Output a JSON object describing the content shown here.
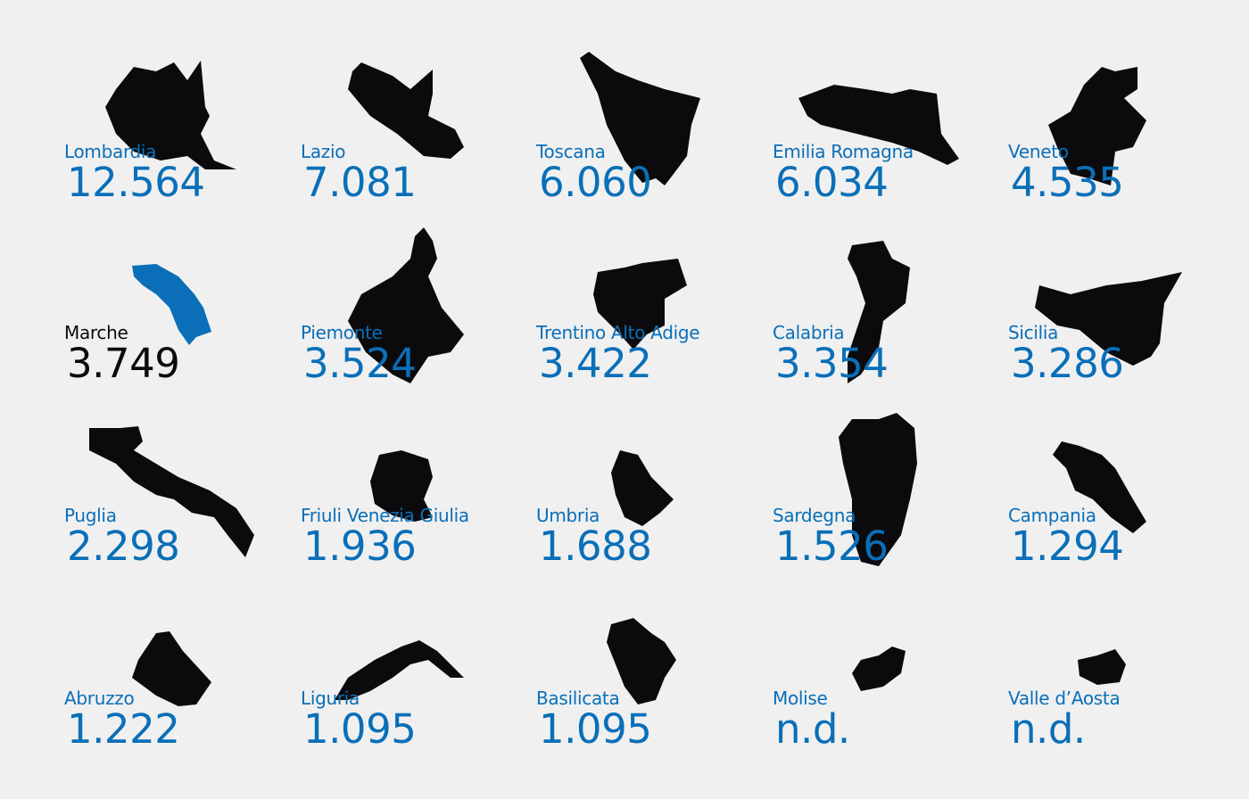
{
  "colors": {
    "background": "#f0f0f0",
    "accent": "#0a6fb8",
    "shape": "#0b0b0d",
    "highlight_text": "#0b0b0d"
  },
  "highlighted_region": "Marche",
  "regions": [
    {
      "name": "Lombardia",
      "value": "12.564"
    },
    {
      "name": "Lazio",
      "value": "7.081"
    },
    {
      "name": "Toscana",
      "value": "6.060"
    },
    {
      "name": "Emilia Romagna",
      "value": "6.034"
    },
    {
      "name": "Veneto",
      "value": "4.535"
    },
    {
      "name": "Marche",
      "value": "3.749"
    },
    {
      "name": "Piemonte",
      "value": "3.524"
    },
    {
      "name": "Trentino Alto Adige",
      "value": "3.422"
    },
    {
      "name": "Calabria",
      "value": "3.354"
    },
    {
      "name": "Sicilia",
      "value": "3.286"
    },
    {
      "name": "Puglia",
      "value": "2.298"
    },
    {
      "name": "Friuli Venezia Giulia",
      "value": "1.936"
    },
    {
      "name": "Umbria",
      "value": "1.688"
    },
    {
      "name": "Sardegna",
      "value": "1.526"
    },
    {
      "name": "Campania",
      "value": "1.294"
    },
    {
      "name": "Abruzzo",
      "value": "1.222"
    },
    {
      "name": "Liguria",
      "value": "1.095"
    },
    {
      "name": "Basilicata",
      "value": "1.095"
    },
    {
      "name": "Molise",
      "value": "n.d."
    },
    {
      "name": "Valle d’Aosta",
      "value": "n.d."
    }
  ]
}
